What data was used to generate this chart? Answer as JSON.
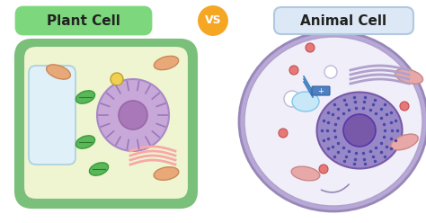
{
  "bg_color": "#ffffff",
  "plant_label": "Plant Cell",
  "animal_label": "Animal Cell",
  "vs_label": "VS",
  "plant_box_color": "#7dd87d",
  "animal_box_color": "#dce8f5",
  "vs_circle_color": "#f5a623",
  "plant_cell_outer": "#7abf7a",
  "plant_cell_inner_bg": "#eef5d0",
  "animal_cell_outer": "#b8a8d8",
  "animal_cell_inner_bg": "#f0eef8",
  "nucleus_plant": "#c8a8d8",
  "nucleus_animal": "#9888c8",
  "nucleolus_plant": "#a878b8",
  "nucleolus_animal": "#6858a8",
  "chromatin_plant": "#c8a8d8",
  "chromatin_animal": "#6868a8",
  "vacuole_color": "#e8f4f8",
  "chloroplast_color": "#5ab85a",
  "mitochondria_plant": "#e8a878",
  "mitochondria_animal": "#e8a8a8",
  "golgi_plant": "#f8c8c8",
  "golgi_animal": "#c8b8d8",
  "vesicle_color": "#c8e8f8",
  "centriole_color": "#6898c8",
  "ribosome_color": "#e87878",
  "lysosome_color": "#e87878",
  "er_animal": "#c8b8d8",
  "small_vacuole_color": "#ffffff"
}
